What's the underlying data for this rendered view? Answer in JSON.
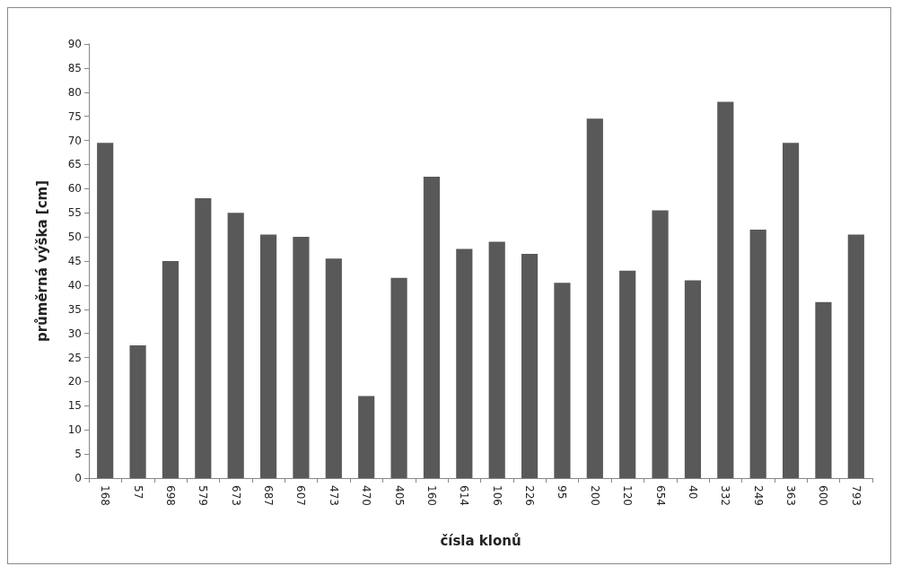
{
  "chart_data": {
    "type": "bar",
    "xlabel": "čísla klonů",
    "ylabel": "průměrná výška [cm]",
    "categories": [
      "168",
      "57",
      "698",
      "579",
      "673",
      "687",
      "607",
      "473",
      "470",
      "405",
      "160",
      "614",
      "106",
      "226",
      "95",
      "200",
      "120",
      "654",
      "40",
      "332",
      "249",
      "363",
      "600",
      "793"
    ],
    "values": [
      69.5,
      27.5,
      45,
      58,
      55,
      50.5,
      50,
      45.5,
      17,
      41.5,
      62.5,
      47.5,
      49,
      46.5,
      40.5,
      74.5,
      43,
      55.5,
      41,
      78,
      51.5,
      69.5,
      36.5,
      50.5
    ],
    "color": "#595959",
    "ylim": [
      0,
      90
    ],
    "yticks": [
      0,
      5,
      10,
      15,
      20,
      25,
      30,
      35,
      40,
      45,
      50,
      55,
      60,
      65,
      70,
      75,
      80,
      85,
      90
    ],
    "grid": false
  }
}
